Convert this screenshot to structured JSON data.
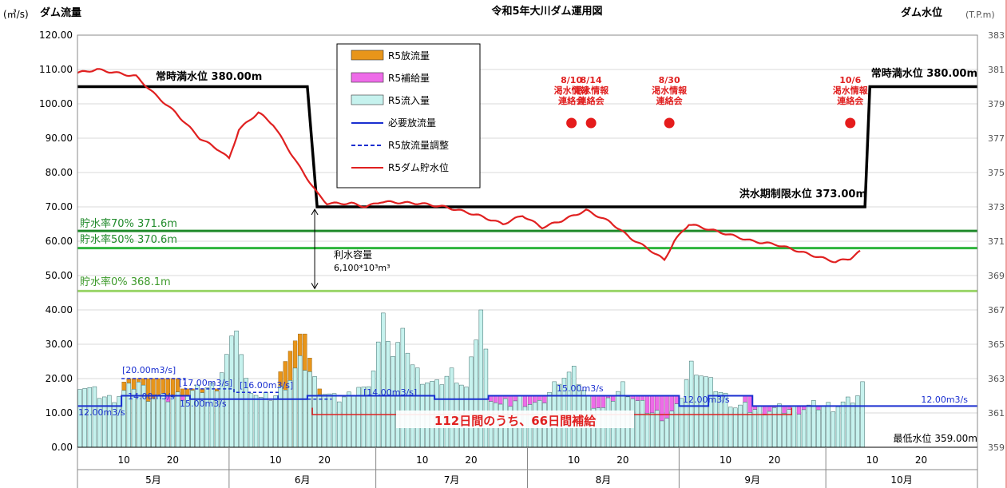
{
  "title": "令和5年大川ダム運用図",
  "left_axis": {
    "title": "ダム流量",
    "unit": "(㎥/s)"
  },
  "right_axis": {
    "title": "ダム水位",
    "unit": "(T.P.m)"
  },
  "legend": [
    {
      "label": "R5放流量",
      "kind": "box",
      "color": "#e8951a"
    },
    {
      "label": "R5補給量",
      "kind": "box",
      "color": "#ee6be8"
    },
    {
      "label": "R5流入量",
      "kind": "box",
      "color": "#c6f2ee"
    },
    {
      "label": "必要放流量",
      "kind": "line",
      "color": "#1a2fd0"
    },
    {
      "label": "R5放流量調整",
      "kind": "dash",
      "color": "#1a2fd0"
    },
    {
      "label": "R5ダム貯水位",
      "kind": "line",
      "color": "#e02020"
    }
  ],
  "annotations": {
    "normal_full_left": "常時満水位 380.00m",
    "normal_full_right": "常時満水位 380.00m",
    "flood_limit": "洪水期制限水位 373.00m",
    "storage_capacity_1": "利水容量",
    "storage_capacity_2": "6,100*10³m³",
    "rate70": "貯水率70% 371.6m",
    "rate50": "貯水率50% 370.6m",
    "rate0": "貯水率0% 368.1m",
    "min_level": "最低水位 359.00m",
    "supply_summary": "112日間のうち、66日間補給",
    "release_labels": [
      "[20.00m3/s]",
      "[17.00m3/s]",
      "[16.00m3/s]",
      "[14.00m3/s]",
      "15.00m3/s",
      "12.00m3/s",
      "15.00m3/s",
      "14.00m3/s",
      "12.00m3/s",
      "12.00m3/s"
    ]
  },
  "events": [
    {
      "line1": "8/10",
      "line2": "渇水情報",
      "line3": "連絡会"
    },
    {
      "line1": "8/14",
      "line2": "渇水情報",
      "line3": "連絡会"
    },
    {
      "line1": "8/30",
      "line2": "渇水情報",
      "line3": "連絡会"
    },
    {
      "line1": "10/6",
      "line2": "渇水情報",
      "line3": "連絡会"
    }
  ],
  "colors": {
    "release": "#e8951a",
    "supply": "#ee6be8",
    "inflow": "#c6f2ee",
    "required": "#1a2fd0",
    "storage": "#e02020",
    "green_dark": "#1f8a2a",
    "green_mid": "#2fb53d",
    "green_light": "#9bd66a",
    "grid": "#d9d9d9",
    "border": "#e04040"
  },
  "chart_data": {
    "type": "bar",
    "title": "令和5年大川ダム運用図",
    "ylabel": "ダム流量",
    "y2label": "ダム水位",
    "ylim": [
      0,
      120
    ],
    "yticks": [
      "0.00",
      "10.00",
      "20.00",
      "30.00",
      "40.00",
      "50.00",
      "60.00",
      "70.00",
      "80.00",
      "90.00",
      "100.00",
      "110.00",
      "120.00"
    ],
    "y2lim": [
      359,
      383
    ],
    "y2ticks": [
      "359",
      "361",
      "363",
      "365",
      "367",
      "369",
      "371",
      "373",
      "375",
      "377",
      "379",
      "381",
      "383"
    ],
    "x_start": "5/1",
    "days": 184,
    "month_labels": [
      "5月",
      "6月",
      "7月",
      "8月",
      "9月",
      "10月"
    ],
    "month_lengths": [
      31,
      30,
      31,
      31,
      30,
      31
    ],
    "day_ticks": [
      "10",
      "20"
    ],
    "x_day_offsets": [
      0,
      31,
      61,
      92,
      123,
      153,
      184
    ],
    "storage_level_key_points": [
      [
        0,
        380.8
      ],
      [
        4,
        381.0
      ],
      [
        8,
        380.8
      ],
      [
        12,
        380.6
      ],
      [
        16,
        379.5
      ],
      [
        20,
        378.5
      ],
      [
        25,
        377.0
      ],
      [
        29,
        376.3
      ],
      [
        31,
        375.8
      ],
      [
        33,
        377.5
      ],
      [
        37,
        378.5
      ],
      [
        40,
        377.8
      ],
      [
        45,
        375.5
      ],
      [
        49,
        373.8
      ],
      [
        51,
        373.2
      ],
      [
        56,
        373.2
      ],
      [
        59,
        373.0
      ],
      [
        62,
        373.3
      ],
      [
        70,
        373.2
      ],
      [
        75,
        373.0
      ],
      [
        78,
        372.8
      ],
      [
        82,
        372.5
      ],
      [
        87,
        372.0
      ],
      [
        91,
        372.5
      ],
      [
        95,
        371.8
      ],
      [
        99,
        372.2
      ],
      [
        104,
        372.8
      ],
      [
        109,
        372.1
      ],
      [
        113,
        371.2
      ],
      [
        117,
        370.5
      ],
      [
        120,
        369.9
      ],
      [
        122,
        371.0
      ],
      [
        125,
        372.0
      ],
      [
        129,
        371.7
      ],
      [
        133,
        371.4
      ],
      [
        138,
        371.0
      ],
      [
        143,
        370.8
      ],
      [
        150,
        370.2
      ],
      [
        155,
        369.8
      ],
      [
        158,
        370.0
      ],
      [
        160,
        370.4
      ]
    ],
    "inflow_key_points": [
      [
        0,
        18.5
      ],
      [
        3,
        16
      ],
      [
        6,
        14
      ],
      [
        9,
        16
      ],
      [
        12,
        19
      ],
      [
        14,
        15
      ],
      [
        17,
        14
      ],
      [
        20,
        15
      ],
      [
        23,
        16
      ],
      [
        25,
        17
      ],
      [
        28,
        18
      ],
      [
        32,
        35
      ],
      [
        34,
        19
      ],
      [
        37,
        14
      ],
      [
        40,
        15
      ],
      [
        43,
        20
      ],
      [
        45,
        25
      ],
      [
        47,
        22
      ],
      [
        49,
        17
      ],
      [
        52,
        14
      ],
      [
        55,
        15
      ],
      [
        57,
        18
      ],
      [
        59,
        16
      ],
      [
        62,
        38
      ],
      [
        64,
        27
      ],
      [
        66,
        33
      ],
      [
        68,
        24
      ],
      [
        70,
        20
      ],
      [
        73,
        18
      ],
      [
        76,
        22
      ],
      [
        79,
        17
      ],
      [
        82,
        40
      ],
      [
        84,
        15
      ],
      [
        86,
        12
      ],
      [
        90,
        14
      ],
      [
        94,
        12
      ],
      [
        98,
        20
      ],
      [
        101,
        22
      ],
      [
        104,
        14
      ],
      [
        107,
        11
      ],
      [
        111,
        18
      ],
      [
        114,
        13
      ],
      [
        117,
        10
      ],
      [
        120,
        9
      ],
      [
        122,
        11
      ],
      [
        125,
        24
      ],
      [
        128,
        20
      ],
      [
        131,
        16
      ],
      [
        134,
        12
      ],
      [
        138,
        11
      ],
      [
        142,
        11
      ],
      [
        146,
        11
      ],
      [
        150,
        12
      ],
      [
        154,
        12
      ],
      [
        157,
        13
      ],
      [
        159,
        15
      ],
      [
        160,
        18
      ]
    ],
    "release_values": {
      "9": 19,
      "10": 20,
      "11": 20,
      "12": 20,
      "13": 20,
      "14": 20,
      "15": 20,
      "16": 20,
      "17": 20,
      "18": 20,
      "19": 20,
      "20": 20,
      "21": 17,
      "22": 17,
      "23": 17,
      "24": 17,
      "25": 17,
      "26": 17,
      "27": 17,
      "28": 17,
      "29": 17,
      "30": 17,
      "41": 22,
      "42": 25,
      "43": 28,
      "44": 31,
      "45": 33,
      "46": 33,
      "47": 26,
      "48": 20,
      "49": 17,
      "50": 15,
      "59": 15,
      "60": 15,
      "61": 15,
      "62": 15,
      "63": 15,
      "64": 15,
      "65": 15,
      "66": 15,
      "67": 15,
      "68": 15,
      "69": 15,
      "70": 15
    },
    "supply_ranges": [
      [
        16,
        6
      ],
      [
        24,
        3
      ],
      [
        33,
        2
      ],
      [
        76,
        11
      ],
      [
        87,
        36
      ],
      [
        131,
        2
      ],
      [
        136,
        18
      ]
    ],
    "required_release_key_points": [
      [
        0,
        12
      ],
      [
        8,
        12
      ],
      [
        9,
        15
      ],
      [
        22,
        15
      ],
      [
        23,
        14
      ],
      [
        46,
        14
      ],
      [
        47,
        15
      ],
      [
        72,
        15
      ],
      [
        73,
        14
      ],
      [
        84,
        15
      ],
      [
        122,
        15
      ],
      [
        123,
        12
      ],
      [
        128,
        12
      ],
      [
        129,
        15
      ],
      [
        137,
        15
      ],
      [
        138,
        12
      ],
      [
        184,
        12
      ]
    ],
    "adjusted_release_key_points": [
      [
        9,
        20
      ],
      [
        21,
        20
      ],
      [
        22,
        17
      ],
      [
        31,
        17
      ],
      [
        32,
        16
      ],
      [
        40,
        16
      ],
      [
        41,
        14
      ],
      [
        52,
        14
      ]
    ],
    "event_days": [
      101,
      105,
      121,
      158
    ],
    "normal_full_level": 380,
    "flood_limit_level": 373,
    "flood_season_start_day": 50,
    "flood_season_end_day": 162,
    "rate70_level": 371.6,
    "rate50_level": 370.6,
    "rate0_level": 368.1
  }
}
